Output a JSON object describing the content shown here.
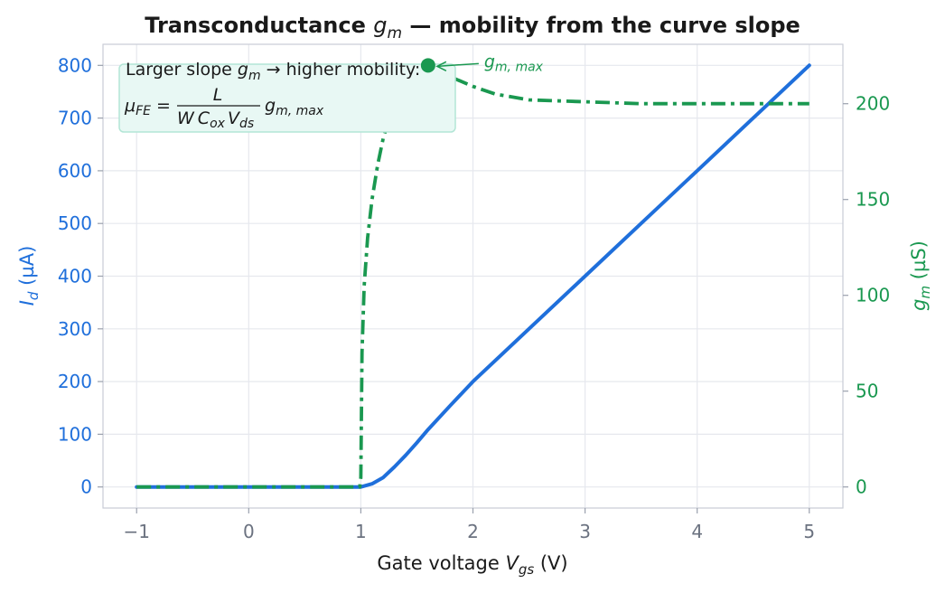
{
  "chart_data": {
    "type": "line",
    "title_prefix": "Transconductance ",
    "title_symbol": "g",
    "title_subscript": "m",
    "title_suffix": " — mobility from the curve slope",
    "x_axis": {
      "label_prefix": "Gate voltage  ",
      "label_symbol": "V",
      "label_subscript": "gs",
      "label_suffix": "  (V)",
      "range": [
        -1.3,
        5.3
      ],
      "ticks": [
        -1,
        0,
        1,
        2,
        3,
        4,
        5
      ],
      "tick_labels": [
        "−1",
        "0",
        "1",
        "2",
        "3",
        "4",
        "5"
      ]
    },
    "y_left": {
      "label_symbol": "I",
      "label_subscript": "d",
      "label_suffix": "  (µA)",
      "range": [
        -40,
        840
      ],
      "ticks": [
        0,
        100,
        200,
        300,
        400,
        500,
        600,
        700,
        800
      ],
      "color": "#1f6fdb"
    },
    "y_right": {
      "label_symbol": "g",
      "label_subscript": "m",
      "label_suffix": "  (µS)",
      "range": [
        -11,
        231
      ],
      "ticks": [
        0,
        50,
        100,
        150,
        200
      ],
      "color": "#1a9850"
    },
    "grid": true,
    "series": [
      {
        "axis": "left",
        "style": "solid",
        "color": "#1f6fdb",
        "x": [
          -1,
          0,
          1,
          1.1,
          1.2,
          1.3,
          1.4,
          1.5,
          1.6,
          1.8,
          2,
          2.5,
          3,
          3.5,
          4,
          4.5,
          5
        ],
        "y": [
          0,
          0,
          0,
          6,
          18,
          38,
          60,
          84,
          109,
          155,
          200,
          300,
          400,
          500,
          600,
          700,
          800
        ]
      },
      {
        "axis": "right",
        "style": "dashdot",
        "color": "#1a9850",
        "x": [
          -1,
          0,
          0.99,
          1.0,
          1.01,
          1.03,
          1.06,
          1.1,
          1.15,
          1.2,
          1.3,
          1.4,
          1.5,
          1.6,
          1.7,
          1.8,
          2.0,
          2.2,
          2.5,
          3,
          3.5,
          4,
          4.5,
          5
        ],
        "y": [
          0,
          0,
          0,
          5,
          70,
          105,
          130,
          150,
          168,
          182,
          202,
          213,
          219,
          220,
          218,
          214,
          209,
          205,
          202,
          201,
          200,
          200,
          200,
          200
        ]
      }
    ],
    "peak": {
      "x": 1.6,
      "y": 220,
      "label_symbol": "g",
      "label_subscript": "m, max"
    },
    "annotation": {
      "line1_prefix": "Larger slope ",
      "line1_symbol": "g",
      "line1_subscript": "m",
      "line1_suffix": " → higher mobility:",
      "formula_lhs_symbol": "μ",
      "formula_lhs_subscript": "FE",
      "formula_equals": " = ",
      "formula_numerator": "L",
      "formula_den_W": "W",
      "formula_den_C": "C",
      "formula_den_C_sub": "ox",
      "formula_den_V": "V",
      "formula_den_V_sub": "ds",
      "formula_rhs_symbol": "g",
      "formula_rhs_subscript": "m, max"
    }
  }
}
